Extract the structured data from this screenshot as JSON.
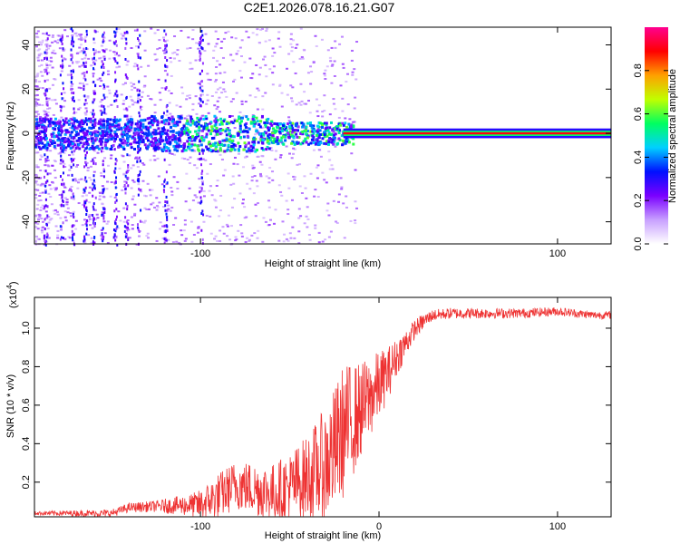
{
  "title": "C2E1.2026.078.16.21.G07",
  "chart_data": [
    {
      "type": "heatmap",
      "name": "spectrogram",
      "xlabel": "Height of straight line (km)",
      "ylabel": "Frequency (Hz)",
      "xlim": [
        -193,
        130
      ],
      "ylim": [
        -50,
        48
      ],
      "xticks": [
        -100,
        100
      ],
      "yticks": [
        -40,
        -20,
        0,
        20,
        40
      ],
      "grid": false,
      "description_series": [
        {
          "name": "dominant-band",
          "x_range": [
            -193,
            130
          ],
          "frequency": 0
        },
        {
          "name": "saturated-line",
          "x_range": [
            -20,
            130
          ],
          "frequency": 0,
          "amplitude": 0.95
        }
      ],
      "colorbar": {
        "label": "Normalized spectral amplitude",
        "range": [
          0,
          1
        ],
        "ticks": [
          0.0,
          0.2,
          0.4,
          0.6,
          0.8
        ],
        "tick_labels": [
          "0.0",
          "0.2",
          "0.4",
          "0.6",
          "0.8"
        ],
        "colors": [
          "#ffffff",
          "#c8a0ff",
          "#7a00ff",
          "#0010ff",
          "#00d0ff",
          "#00ff60",
          "#c0ff00",
          "#ffa000",
          "#ff0000",
          "#ff0090"
        ]
      }
    },
    {
      "type": "line",
      "name": "snr",
      "xlabel": "Height of straight line (km)",
      "ylabel": "SNR (10 * v/v)",
      "multiplier": "(x10",
      "multiplier_exp": "4",
      "xlim": [
        -193,
        130
      ],
      "ylim": [
        0.02,
        1.16
      ],
      "xticks": [
        -100,
        0,
        100
      ],
      "yticks": [
        0.2,
        0.4,
        0.6,
        0.8,
        1.0
      ],
      "ytick_labels": [
        "0.2",
        "0.4",
        "0.6",
        "0.8",
        "1.0"
      ],
      "color": "#ee3333",
      "trend": {
        "x": [
          -193,
          -150,
          -140,
          -120,
          -100,
          -90,
          -80,
          -70,
          -60,
          -50,
          -40,
          -30,
          -25,
          -20,
          -15,
          -10,
          -5,
          0,
          5,
          10,
          15,
          20,
          25,
          30,
          40,
          50,
          60,
          80,
          100,
          110,
          120,
          130
        ],
        "y": [
          0.04,
          0.04,
          0.07,
          0.08,
          0.09,
          0.14,
          0.2,
          0.18,
          0.16,
          0.19,
          0.25,
          0.32,
          0.4,
          0.5,
          0.55,
          0.6,
          0.66,
          0.72,
          0.78,
          0.86,
          0.93,
          1.0,
          1.04,
          1.07,
          1.08,
          1.08,
          1.08,
          1.08,
          1.09,
          1.08,
          1.07,
          1.07
        ]
      },
      "noise_amplitude": {
        "x": [
          -193,
          -150,
          -125,
          -105,
          -90,
          -60,
          -40,
          -30,
          -20,
          -10,
          0,
          10,
          20,
          30,
          130
        ],
        "y": [
          0.01,
          0.02,
          0.03,
          0.06,
          0.12,
          0.15,
          0.22,
          0.3,
          0.35,
          0.25,
          0.18,
          0.1,
          0.05,
          0.03,
          0.02
        ]
      }
    }
  ]
}
